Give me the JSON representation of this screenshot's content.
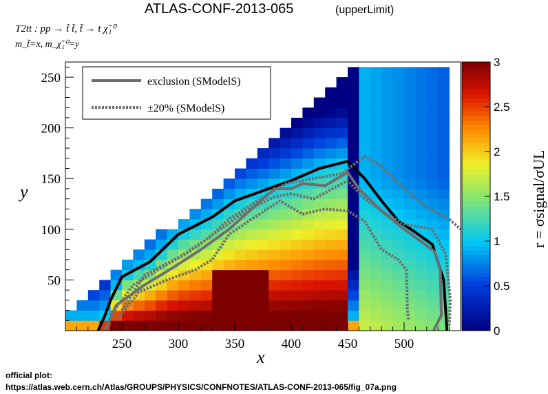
{
  "title": "ATLAS-CONF-2013-065",
  "title_suffix": "(upperLimit)",
  "process_label": "T2tt : pp → t̃ t̃, t̃ → t χ̃₁⁰",
  "mass_label": "m_t̃=x, m_χ̃₁⁰=y",
  "footer": {
    "heading": "official plot:",
    "url": "https://atlas.web.cern.ch/Atlas/GROUPS/PHYSICS/CONFNOTES/ATLAS-CONF-2013-065/fig_07a.png"
  },
  "chart_data": {
    "type": "heatmap",
    "xlabel": "x",
    "ylabel": "y",
    "zlabel": "r = σsignal/σUL",
    "xlim": [
      200,
      550
    ],
    "ylim": [
      0,
      265
    ],
    "zlim": [
      0,
      3
    ],
    "xticks": [
      250,
      300,
      350,
      400,
      450,
      500
    ],
    "yticks": [
      50,
      100,
      150,
      200,
      250
    ],
    "zticks": [
      0,
      0.5,
      1,
      1.5,
      2,
      2.5,
      3
    ],
    "colormap": "rainbow (dark blue → cyan → yellow → red → dark red)",
    "grid": false,
    "legend_position": "top-left",
    "series": [
      {
        "name": "exclusion (SModelS)",
        "style": "solid",
        "color": "#000000",
        "points": [
          [
            229,
            0
          ],
          [
            235,
            15
          ],
          [
            240,
            30
          ],
          [
            250,
            53
          ],
          [
            275,
            68
          ],
          [
            300,
            95
          ],
          [
            330,
            112
          ],
          [
            350,
            128
          ],
          [
            375,
            138
          ],
          [
            400,
            148
          ],
          [
            425,
            160
          ],
          [
            450,
            167
          ],
          [
            465,
            150
          ],
          [
            480,
            128
          ],
          [
            495,
            108
          ],
          [
            510,
            97
          ],
          [
            525,
            85
          ],
          [
            535,
            50
          ],
          [
            538,
            0
          ]
        ]
      },
      {
        "name": "exclusion (SModelS) (contour 2)",
        "style": "solid",
        "color": "#6e6e6e",
        "points": [
          [
            235,
            0
          ],
          [
            245,
            25
          ],
          [
            270,
            45
          ],
          [
            295,
            62
          ],
          [
            320,
            80
          ],
          [
            345,
            100
          ],
          [
            365,
            120
          ],
          [
            385,
            140
          ],
          [
            400,
            140
          ],
          [
            410,
            145
          ],
          [
            430,
            143
          ],
          [
            450,
            156
          ],
          [
            460,
            140
          ],
          [
            480,
            118
          ],
          [
            500,
            100
          ],
          [
            515,
            88
          ],
          [
            527,
            78
          ],
          [
            532,
            60
          ],
          [
            533,
            15
          ],
          [
            526,
            0
          ]
        ]
      },
      {
        "name": "±20% (SModelS)",
        "style": "dotted",
        "color": "#6e6e6e",
        "points": [
          [
            240,
            15
          ],
          [
            260,
            45
          ],
          [
            285,
            62
          ],
          [
            310,
            78
          ],
          [
            335,
            98
          ],
          [
            360,
            118
          ],
          [
            385,
            132
          ],
          [
            400,
            135
          ],
          [
            420,
            130
          ],
          [
            450,
            148
          ],
          [
            465,
            130
          ],
          [
            480,
            118
          ],
          [
            500,
            105
          ],
          [
            525,
            100
          ],
          [
            537,
            75
          ],
          [
            541,
            30
          ],
          [
            540,
            5
          ]
        ]
      },
      {
        "name": "±20% (SModelS) (lower)",
        "style": "dotted",
        "color": "#6e6e6e",
        "points": [
          [
            245,
            10
          ],
          [
            265,
            38
          ],
          [
            290,
            50
          ],
          [
            315,
            60
          ],
          [
            330,
            70
          ],
          [
            345,
            95
          ],
          [
            365,
            110
          ],
          [
            390,
            128
          ],
          [
            410,
            115
          ],
          [
            430,
            120
          ],
          [
            450,
            118
          ],
          [
            465,
            108
          ],
          [
            480,
            80
          ],
          [
            495,
            70
          ],
          [
            502,
            60
          ],
          [
            503,
            20
          ],
          [
            504,
            10
          ]
        ]
      },
      {
        "name": "±20% (SModelS) (upper)",
        "style": "dotted",
        "color": "#6e6e6e",
        "points": [
          [
            250,
            20
          ],
          [
            270,
            55
          ],
          [
            300,
            72
          ],
          [
            325,
            90
          ],
          [
            345,
            110
          ],
          [
            370,
            128
          ],
          [
            395,
            145
          ],
          [
            420,
            150
          ],
          [
            445,
            155
          ],
          [
            465,
            172
          ],
          [
            480,
            162
          ],
          [
            500,
            140
          ],
          [
            520,
            122
          ],
          [
            540,
            110
          ],
          [
            550,
            100
          ]
        ]
      }
    ]
  }
}
